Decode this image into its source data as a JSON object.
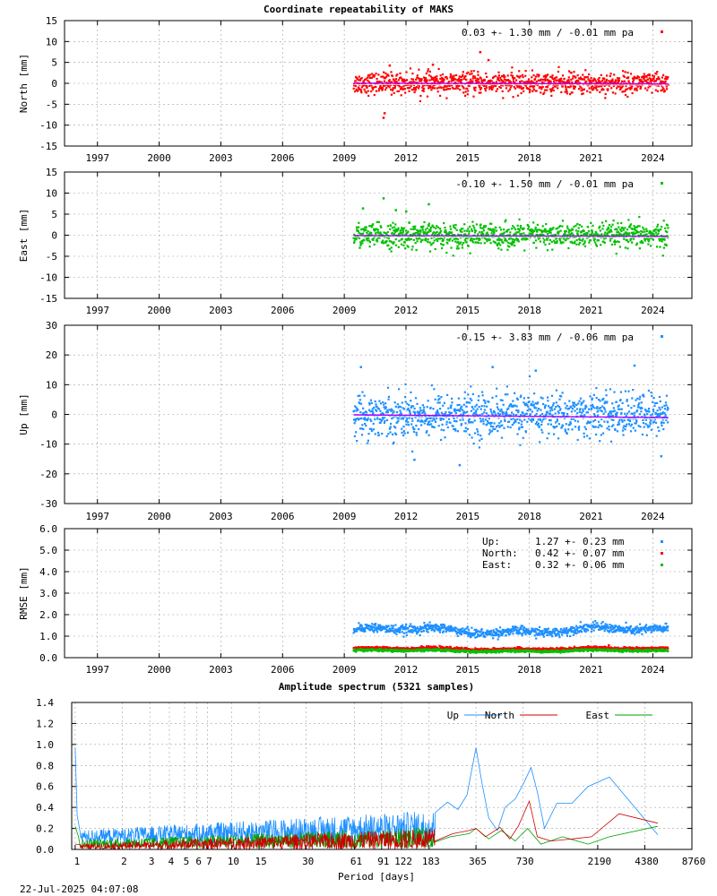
{
  "title": "Coordinate repeatability of MAKS",
  "timestamp": "22-Jul-2025 04:07:08",
  "chart_data": [
    {
      "type": "scatter",
      "id": "north",
      "ylabel": "North [mm]",
      "ylim": [
        -15,
        15
      ],
      "yticks": [
        15,
        10,
        5,
        0,
        -5,
        -10,
        -15
      ],
      "xlim": [
        1995.4,
        2025.9
      ],
      "xticks": [
        1997,
        2000,
        2003,
        2006,
        2009,
        2012,
        2015,
        2018,
        2021,
        2024
      ],
      "x_range_data": [
        2009.45,
        2024.75
      ],
      "color": "#ff0000",
      "trend_color": "#aa00ff",
      "series_stats": {
        "mean": 0.03,
        "sigma": 1.3,
        "rate": -0.01
      },
      "legend": "0.03 +- 1.30 mm / -0.01 mm pa",
      "outliers": [
        [
          2010.9,
          -8.2
        ],
        [
          2010.95,
          -7.1
        ],
        [
          2015.6,
          7.5
        ],
        [
          2011.2,
          4.3
        ],
        [
          2016.0,
          5.6
        ],
        [
          2013.3,
          4.5
        ]
      ]
    },
    {
      "type": "scatter",
      "id": "east",
      "ylabel": "East [mm]",
      "ylim": [
        -15,
        15
      ],
      "yticks": [
        15,
        10,
        5,
        0,
        -5,
        -10,
        -15
      ],
      "xlim": [
        1995.4,
        2025.9
      ],
      "xticks": [
        1997,
        2000,
        2003,
        2006,
        2009,
        2012,
        2015,
        2018,
        2021,
        2024
      ],
      "x_range_data": [
        2009.45,
        2024.75
      ],
      "color": "#00c000",
      "trend_color": "#aa00ff",
      "series_stats": {
        "mean": -0.1,
        "sigma": 1.5,
        "rate": -0.01
      },
      "legend": "-0.10 +- 1.50 mm / -0.01 mm pa",
      "outliers": [
        [
          2010.9,
          8.8
        ],
        [
          2013.1,
          7.4
        ],
        [
          2009.9,
          6.4
        ],
        [
          2012.0,
          5.7
        ],
        [
          2011.5,
          6.0
        ]
      ]
    },
    {
      "type": "scatter",
      "id": "up",
      "ylabel": "Up [mm]",
      "ylim": [
        -30,
        30
      ],
      "yticks": [
        30,
        20,
        10,
        0,
        -10,
        -20,
        -30
      ],
      "xlim": [
        1995.4,
        2025.9
      ],
      "xticks": [
        1997,
        2000,
        2003,
        2006,
        2009,
        2012,
        2015,
        2018,
        2021,
        2024
      ],
      "x_range_data": [
        2009.45,
        2024.75
      ],
      "color": "#1e90ff",
      "trend_color": "#aa00ff",
      "series_stats": {
        "mean": -0.15,
        "sigma": 3.83,
        "rate": -0.06
      },
      "legend": "-0.15 +- 3.83 mm / -0.06 mm pa",
      "outliers": [
        [
          2014.6,
          -17.0
        ],
        [
          2023.1,
          16.5
        ],
        [
          2016.2,
          16.0
        ],
        [
          2009.8,
          16.0
        ],
        [
          2012.4,
          -15.2
        ],
        [
          2018.3,
          14.8
        ],
        [
          2024.4,
          -14.0
        ]
      ]
    },
    {
      "type": "scatter",
      "id": "rmse",
      "ylabel": "RMSE [mm]",
      "ylim": [
        0,
        6
      ],
      "yticks": [
        "6.0",
        "5.0",
        "4.0",
        "3.0",
        "2.0",
        "1.0",
        "0.0"
      ],
      "xlim": [
        1995.4,
        2025.9
      ],
      "xticks": [
        1997,
        2000,
        2003,
        2006,
        2009,
        2012,
        2015,
        2018,
        2021,
        2024
      ],
      "x_range_data": [
        2009.45,
        2024.75
      ],
      "series": [
        {
          "name": "Up",
          "color": "#1e90ff",
          "mean": 1.27,
          "sigma": 0.23
        },
        {
          "name": "North",
          "color": "#ff0000",
          "mean": 0.42,
          "sigma": 0.07
        },
        {
          "name": "East",
          "color": "#00c000",
          "mean": 0.32,
          "sigma": 0.06
        }
      ],
      "legend": [
        {
          "label": "Up:",
          "value": "1.27 +- 0.23 mm",
          "color": "#1e90ff"
        },
        {
          "label": "North:",
          "value": "0.42 +- 0.07 mm",
          "color": "#ff0000"
        },
        {
          "label": "East:",
          "value": "0.32 +- 0.06 mm",
          "color": "#00c000"
        }
      ]
    },
    {
      "type": "line",
      "id": "spectrum",
      "title": "Amplitude spectrum (5321 samples)",
      "xlabel": "Period [days]",
      "xscale": "log",
      "xlim": [
        0.95,
        8760
      ],
      "ylim": [
        0,
        1.4
      ],
      "yticks": [
        "1.4",
        "1.2",
        "1.0",
        "0.8",
        "0.6",
        "0.4",
        "0.2",
        "0.0"
      ],
      "xticks": [
        1,
        2,
        3,
        4,
        5,
        6,
        7,
        10,
        15,
        30,
        61,
        91,
        122,
        183,
        365,
        730,
        2190,
        4380,
        8760
      ],
      "legend_position": "top-right",
      "series": [
        {
          "name": "Up",
          "color": "#1e90ff",
          "spike": [
            [
              1.0,
              0.97
            ],
            [
              1.03,
              0.32
            ],
            [
              1.06,
              0.22
            ]
          ],
          "peaks": [
            [
              200,
              0.35
            ],
            [
              240,
              0.45
            ],
            [
              280,
              0.38
            ],
            [
              320,
              0.52
            ],
            [
              365,
              0.97
            ],
            [
              400,
              0.62
            ],
            [
              440,
              0.3
            ],
            [
              500,
              0.18
            ],
            [
              560,
              0.4
            ],
            [
              650,
              0.48
            ],
            [
              730,
              0.62
            ],
            [
              820,
              0.78
            ],
            [
              900,
              0.55
            ],
            [
              1000,
              0.2
            ],
            [
              1200,
              0.44
            ],
            [
              1500,
              0.44
            ],
            [
              1900,
              0.6
            ],
            [
              2600,
              0.69
            ],
            [
              5300,
              0.14
            ]
          ]
        },
        {
          "name": "North",
          "color": "#cc0000",
          "spike": [
            [
              1.0,
              0.05
            ]
          ],
          "peaks": [
            [
              260,
              0.15
            ],
            [
              330,
              0.18
            ],
            [
              365,
              0.2
            ],
            [
              420,
              0.12
            ],
            [
              520,
              0.21
            ],
            [
              600,
              0.1
            ],
            [
              680,
              0.22
            ],
            [
              800,
              0.46
            ],
            [
              900,
              0.12
            ],
            [
              1100,
              0.08
            ],
            [
              1500,
              0.1
            ],
            [
              2000,
              0.12
            ],
            [
              3000,
              0.34
            ],
            [
              5300,
              0.25
            ]
          ]
        },
        {
          "name": "East",
          "color": "#00a000",
          "spike": [
            [
              1.0,
              0.22
            ],
            [
              1.05,
              0.12
            ]
          ],
          "peaks": [
            [
              250,
              0.12
            ],
            [
              330,
              0.15
            ],
            [
              365,
              0.2
            ],
            [
              440,
              0.1
            ],
            [
              530,
              0.18
            ],
            [
              650,
              0.08
            ],
            [
              780,
              0.2
            ],
            [
              950,
              0.05
            ],
            [
              1300,
              0.12
            ],
            [
              1900,
              0.05
            ],
            [
              2600,
              0.12
            ],
            [
              5300,
              0.22
            ]
          ]
        }
      ]
    }
  ]
}
